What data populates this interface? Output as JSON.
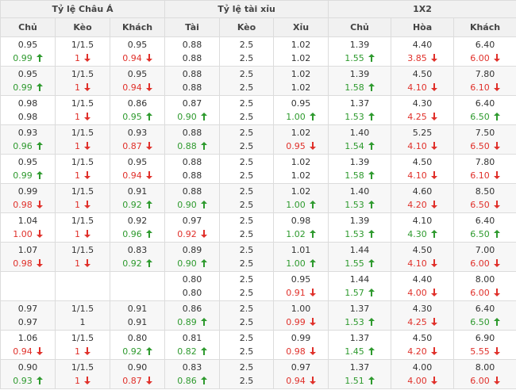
{
  "header": {
    "groups": [
      "Tỷ lệ Châu Á",
      "Tỷ lệ tài xỉu",
      "1X2"
    ],
    "columns": [
      "Chủ",
      "Kèo",
      "Khách",
      "Tài",
      "Kèo",
      "Xỉu",
      "Chủ",
      "Hòa",
      "Khách"
    ]
  },
  "table": {
    "rows": [
      [
        [
          "0.95",
          {
            "text": "0.99",
            "trend": "up"
          }
        ],
        [
          "1/1.5",
          {
            "text": "1",
            "trend": "down"
          }
        ],
        [
          "0.95",
          {
            "text": "0.94",
            "trend": "down"
          }
        ],
        [
          "0.88",
          {
            "text": "0.88"
          }
        ],
        [
          "2.5",
          {
            "text": "2.5"
          }
        ],
        [
          "1.02",
          {
            "text": "1.02"
          }
        ],
        [
          "1.39",
          {
            "text": "1.55",
            "trend": "up"
          }
        ],
        [
          "4.40",
          {
            "text": "3.85",
            "trend": "down"
          }
        ],
        [
          "6.40",
          {
            "text": "6.00",
            "trend": "down"
          }
        ]
      ],
      [
        [
          "0.95",
          {
            "text": "0.99",
            "trend": "up"
          }
        ],
        [
          "1/1.5",
          {
            "text": "1",
            "trend": "down"
          }
        ],
        [
          "0.95",
          {
            "text": "0.94",
            "trend": "down"
          }
        ],
        [
          "0.88",
          {
            "text": "0.88"
          }
        ],
        [
          "2.5",
          {
            "text": "2.5"
          }
        ],
        [
          "1.02",
          {
            "text": "1.02"
          }
        ],
        [
          "1.39",
          {
            "text": "1.58",
            "trend": "up"
          }
        ],
        [
          "4.50",
          {
            "text": "4.10",
            "trend": "down"
          }
        ],
        [
          "7.80",
          {
            "text": "6.10",
            "trend": "down"
          }
        ]
      ],
      [
        [
          "0.98",
          {
            "text": "0.98"
          }
        ],
        [
          "1/1.5",
          {
            "text": "1",
            "trend": "down"
          }
        ],
        [
          "0.86",
          {
            "text": "0.95",
            "trend": "up"
          }
        ],
        [
          "0.87",
          {
            "text": "0.90",
            "trend": "up"
          }
        ],
        [
          "2.5",
          {
            "text": "2.5"
          }
        ],
        [
          "0.95",
          {
            "text": "1.00",
            "trend": "up"
          }
        ],
        [
          "1.37",
          {
            "text": "1.53",
            "trend": "up"
          }
        ],
        [
          "4.30",
          {
            "text": "4.25",
            "trend": "down"
          }
        ],
        [
          "6.40",
          {
            "text": "6.50",
            "trend": "up"
          }
        ]
      ],
      [
        [
          "0.93",
          {
            "text": "0.96",
            "trend": "up"
          }
        ],
        [
          "1/1.5",
          {
            "text": "1",
            "trend": "down"
          }
        ],
        [
          "0.93",
          {
            "text": "0.87",
            "trend": "down"
          }
        ],
        [
          "0.88",
          {
            "text": "0.88",
            "trend": "up"
          }
        ],
        [
          "2.5",
          {
            "text": "2.5"
          }
        ],
        [
          "1.02",
          {
            "text": "0.95",
            "trend": "down"
          }
        ],
        [
          "1.40",
          {
            "text": "1.54",
            "trend": "up"
          }
        ],
        [
          "5.25",
          {
            "text": "4.10",
            "trend": "down"
          }
        ],
        [
          "7.50",
          {
            "text": "6.50",
            "trend": "down"
          }
        ]
      ],
      [
        [
          "0.95",
          {
            "text": "0.99",
            "trend": "up"
          }
        ],
        [
          "1/1.5",
          {
            "text": "1",
            "trend": "down"
          }
        ],
        [
          "0.95",
          {
            "text": "0.94",
            "trend": "down"
          }
        ],
        [
          "0.88",
          {
            "text": "0.88"
          }
        ],
        [
          "2.5",
          {
            "text": "2.5"
          }
        ],
        [
          "1.02",
          {
            "text": "1.02"
          }
        ],
        [
          "1.39",
          {
            "text": "1.58",
            "trend": "up"
          }
        ],
        [
          "4.50",
          {
            "text": "4.10",
            "trend": "down"
          }
        ],
        [
          "7.80",
          {
            "text": "6.10",
            "trend": "down"
          }
        ]
      ],
      [
        [
          "0.99",
          {
            "text": "0.98",
            "trend": "down"
          }
        ],
        [
          "1/1.5",
          {
            "text": "1",
            "trend": "down"
          }
        ],
        [
          "0.91",
          {
            "text": "0.92",
            "trend": "up"
          }
        ],
        [
          "0.88",
          {
            "text": "0.90",
            "trend": "up"
          }
        ],
        [
          "2.5",
          {
            "text": "2.5"
          }
        ],
        [
          "1.02",
          {
            "text": "1.00",
            "trend": "up"
          }
        ],
        [
          "1.40",
          {
            "text": "1.53",
            "trend": "up"
          }
        ],
        [
          "4.60",
          {
            "text": "4.20",
            "trend": "down"
          }
        ],
        [
          "8.50",
          {
            "text": "6.50",
            "trend": "down"
          }
        ]
      ],
      [
        [
          "1.04",
          {
            "text": "1.00",
            "trend": "down"
          }
        ],
        [
          "1/1.5",
          {
            "text": "1",
            "trend": "down"
          }
        ],
        [
          "0.92",
          {
            "text": "0.96",
            "trend": "up"
          }
        ],
        [
          "0.97",
          {
            "text": "0.92",
            "trend": "down"
          }
        ],
        [
          "2.5",
          {
            "text": "2.5"
          }
        ],
        [
          "0.98",
          {
            "text": "1.02",
            "trend": "up"
          }
        ],
        [
          "1.39",
          {
            "text": "1.53",
            "trend": "up"
          }
        ],
        [
          "4.10",
          {
            "text": "4.30",
            "trend": "up"
          }
        ],
        [
          "6.40",
          {
            "text": "6.50",
            "trend": "up"
          }
        ]
      ],
      [
        [
          "1.07",
          {
            "text": "0.98",
            "trend": "down"
          }
        ],
        [
          "1/1.5",
          {
            "text": "1",
            "trend": "down"
          }
        ],
        [
          "0.83",
          {
            "text": "0.92",
            "trend": "up"
          }
        ],
        [
          "0.89",
          {
            "text": "0.90",
            "trend": "up"
          }
        ],
        [
          "2.5",
          {
            "text": "2.5"
          }
        ],
        [
          "1.01",
          {
            "text": "1.00",
            "trend": "up"
          }
        ],
        [
          "1.44",
          {
            "text": "1.55",
            "trend": "up"
          }
        ],
        [
          "4.50",
          {
            "text": "4.10",
            "trend": "down"
          }
        ],
        [
          "7.00",
          {
            "text": "6.00",
            "trend": "down"
          }
        ]
      ],
      [
        null,
        null,
        null,
        [
          "0.80",
          {
            "text": "0.80"
          }
        ],
        [
          "2.5",
          {
            "text": "2.5"
          }
        ],
        [
          "0.95",
          {
            "text": "0.91",
            "trend": "down"
          }
        ],
        [
          "1.44",
          {
            "text": "1.57",
            "trend": "up"
          }
        ],
        [
          "4.40",
          {
            "text": "4.00",
            "trend": "down"
          }
        ],
        [
          "8.00",
          {
            "text": "6.00",
            "trend": "down"
          }
        ]
      ],
      [
        [
          "0.97",
          {
            "text": "0.97"
          }
        ],
        [
          "1/1.5",
          {
            "text": "1"
          }
        ],
        [
          "0.91",
          {
            "text": "0.91"
          }
        ],
        [
          "0.86",
          {
            "text": "0.89",
            "trend": "up"
          }
        ],
        [
          "2.5",
          {
            "text": "2.5"
          }
        ],
        [
          "1.00",
          {
            "text": "0.99",
            "trend": "down"
          }
        ],
        [
          "1.37",
          {
            "text": "1.53",
            "trend": "up"
          }
        ],
        [
          "4.30",
          {
            "text": "4.25",
            "trend": "down"
          }
        ],
        [
          "6.40",
          {
            "text": "6.50",
            "trend": "up"
          }
        ]
      ],
      [
        [
          "1.06",
          {
            "text": "0.94",
            "trend": "down"
          }
        ],
        [
          "1/1.5",
          {
            "text": "1",
            "trend": "down"
          }
        ],
        [
          "0.80",
          {
            "text": "0.92",
            "trend": "up"
          }
        ],
        [
          "0.81",
          {
            "text": "0.82",
            "trend": "up"
          }
        ],
        [
          "2.5",
          {
            "text": "2.5"
          }
        ],
        [
          "0.99",
          {
            "text": "0.98",
            "trend": "down"
          }
        ],
        [
          "1.37",
          {
            "text": "1.45",
            "trend": "up"
          }
        ],
        [
          "4.50",
          {
            "text": "4.20",
            "trend": "down"
          }
        ],
        [
          "6.90",
          {
            "text": "5.55",
            "trend": "down"
          }
        ]
      ],
      [
        [
          "0.90",
          {
            "text": "0.93",
            "trend": "up"
          }
        ],
        [
          "1/1.5",
          {
            "text": "1",
            "trend": "down"
          }
        ],
        [
          "0.90",
          {
            "text": "0.87",
            "trend": "down"
          }
        ],
        [
          "0.83",
          {
            "text": "0.86",
            "trend": "up"
          }
        ],
        [
          "2.5",
          {
            "text": "2.5"
          }
        ],
        [
          "0.97",
          {
            "text": "0.94",
            "trend": "down"
          }
        ],
        [
          "1.37",
          {
            "text": "1.51",
            "trend": "up"
          }
        ],
        [
          "4.00",
          {
            "text": "4.00",
            "trend": "down"
          }
        ],
        [
          "8.00",
          {
            "text": "6.00",
            "trend": "down"
          }
        ]
      ]
    ]
  }
}
